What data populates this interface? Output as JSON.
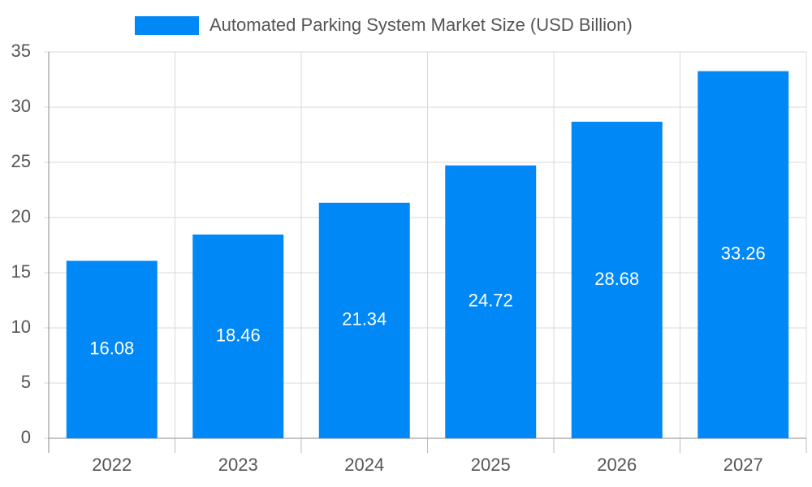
{
  "chart_data": {
    "type": "bar",
    "categories": [
      "2022",
      "2023",
      "2024",
      "2025",
      "2026",
      "2027"
    ],
    "series": [
      {
        "name": "Automated Parking System Market Size (USD Billion)",
        "color": "#0088f7",
        "values": [
          16.08,
          18.46,
          21.34,
          24.72,
          28.68,
          33.26
        ]
      }
    ],
    "ylim": [
      0,
      35
    ],
    "yticks": [
      0,
      5,
      10,
      15,
      20,
      25,
      30,
      35
    ],
    "grid": true,
    "legend": "top"
  }
}
